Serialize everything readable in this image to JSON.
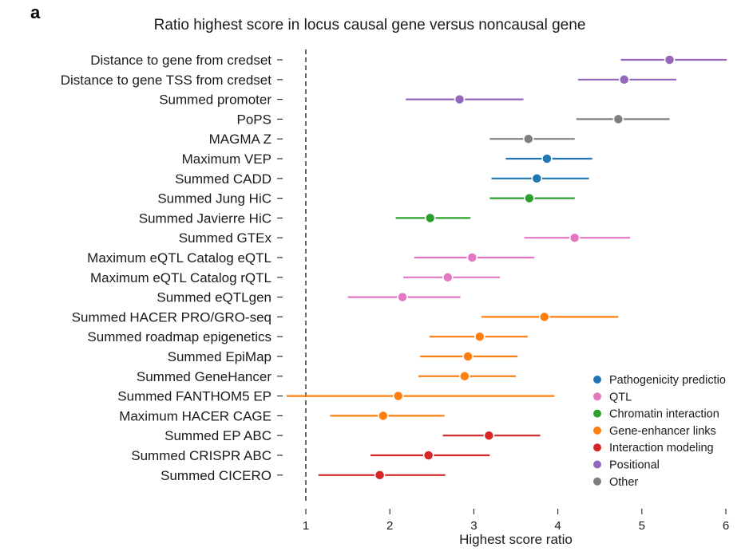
{
  "panel_label": "a",
  "chart_data": {
    "type": "scatter",
    "subtype": "forest-plot (point estimate with interval)",
    "title": "Ratio highest score in locus causal gene versus noncausal gene",
    "xlabel": "Highest score ratio",
    "ylabel": "",
    "xlim": [
      0.75,
      6.05
    ],
    "xticks": [
      1,
      2,
      3,
      4,
      5,
      6
    ],
    "xtick_labels": [
      "1",
      "2",
      "3",
      "4",
      "5",
      "6"
    ],
    "reference_line": {
      "x": 1,
      "style": "dashed"
    },
    "grid": false,
    "legend_position": "bottom-right",
    "categories": {
      "Pathogenicity prediction": "#1f77b4",
      "QTL": "#e377c2",
      "Chromatin interaction": "#2ca02c",
      "Gene-enhancer links": "#ff7f0e",
      "Interaction modeling": "#d62728",
      "Positional": "#9467bd",
      "Other": "#7f7f7f"
    },
    "legend": [
      {
        "label": "Pathogenicity predictio",
        "category": "Pathogenicity prediction",
        "color": "#1f77b4"
      },
      {
        "label": "QTL",
        "category": "QTL",
        "color": "#e377c2"
      },
      {
        "label": "Chromatin interaction",
        "category": "Chromatin interaction",
        "color": "#2ca02c"
      },
      {
        "label": "Gene-enhancer links",
        "category": "Gene-enhancer links",
        "color": "#ff7f0e"
      },
      {
        "label": "Interaction modeling",
        "category": "Interaction modeling",
        "color": "#d62728"
      },
      {
        "label": "Positional",
        "category": "Positional",
        "color": "#9467bd"
      },
      {
        "label": "Other",
        "category": "Other",
        "color": "#7f7f7f"
      }
    ],
    "rows": [
      {
        "label": "Distance to gene from credset",
        "category": "Positional",
        "value": 5.33,
        "lower": 4.75,
        "upper": 6.01
      },
      {
        "label": "Distance to gene TSS from credset",
        "category": "Positional",
        "value": 4.79,
        "lower": 4.24,
        "upper": 5.41
      },
      {
        "label": "Summed promoter",
        "category": "Positional",
        "value": 2.83,
        "lower": 2.19,
        "upper": 3.59
      },
      {
        "label": "PoPS",
        "category": "Other",
        "value": 4.72,
        "lower": 4.22,
        "upper": 5.33
      },
      {
        "label": "MAGMA Z",
        "category": "Other",
        "value": 3.65,
        "lower": 3.19,
        "upper": 4.2
      },
      {
        "label": "Maximum VEP",
        "category": "Pathogenicity prediction",
        "value": 3.87,
        "lower": 3.38,
        "upper": 4.41
      },
      {
        "label": "Summed CADD",
        "category": "Pathogenicity prediction",
        "value": 3.75,
        "lower": 3.21,
        "upper": 4.37
      },
      {
        "label": "Summed Jung HiC",
        "category": "Chromatin interaction",
        "value": 3.66,
        "lower": 3.19,
        "upper": 4.2
      },
      {
        "label": "Summed Javierre HiC",
        "category": "Chromatin interaction",
        "value": 2.48,
        "lower": 2.07,
        "upper": 2.96
      },
      {
        "label": "Summed GTEx",
        "category": "QTL",
        "value": 4.2,
        "lower": 3.6,
        "upper": 4.86
      },
      {
        "label": "Maximum eQTL Catalog eQTL",
        "category": "QTL",
        "value": 2.98,
        "lower": 2.29,
        "upper": 3.72
      },
      {
        "label": "Maximum eQTL Catalog rQTL",
        "category": "QTL",
        "value": 2.69,
        "lower": 2.16,
        "upper": 3.31
      },
      {
        "label": "Summed eQTLgen",
        "category": "QTL",
        "value": 2.15,
        "lower": 1.5,
        "upper": 2.84
      },
      {
        "label": "Summed HACER PRO/GRO-seq",
        "category": "Gene-enhancer links",
        "value": 3.84,
        "lower": 3.09,
        "upper": 4.72
      },
      {
        "label": "Summed roadmap epigenetics",
        "category": "Gene-enhancer links",
        "value": 3.07,
        "lower": 2.47,
        "upper": 3.64
      },
      {
        "label": "Summed EpiMap",
        "category": "Gene-enhancer links",
        "value": 2.93,
        "lower": 2.36,
        "upper": 3.52
      },
      {
        "label": "Summed GeneHancer",
        "category": "Gene-enhancer links",
        "value": 2.89,
        "lower": 2.34,
        "upper": 3.5
      },
      {
        "label": "Summed FANTHOM5 EP",
        "category": "Gene-enhancer links",
        "value": 2.1,
        "lower": 0.77,
        "upper": 3.96
      },
      {
        "label": "Maximum HACER CAGE",
        "category": "Gene-enhancer links",
        "value": 1.92,
        "lower": 1.29,
        "upper": 2.65
      },
      {
        "label": "Summed EP ABC",
        "category": "Interaction modeling",
        "value": 3.18,
        "lower": 2.63,
        "upper": 3.79
      },
      {
        "label": "Summed CRISPR ABC",
        "category": "Interaction modeling",
        "value": 2.46,
        "lower": 1.77,
        "upper": 3.19
      },
      {
        "label": "Summed CICERO",
        "category": "Interaction modeling",
        "value": 1.88,
        "lower": 1.15,
        "upper": 2.66
      }
    ]
  }
}
